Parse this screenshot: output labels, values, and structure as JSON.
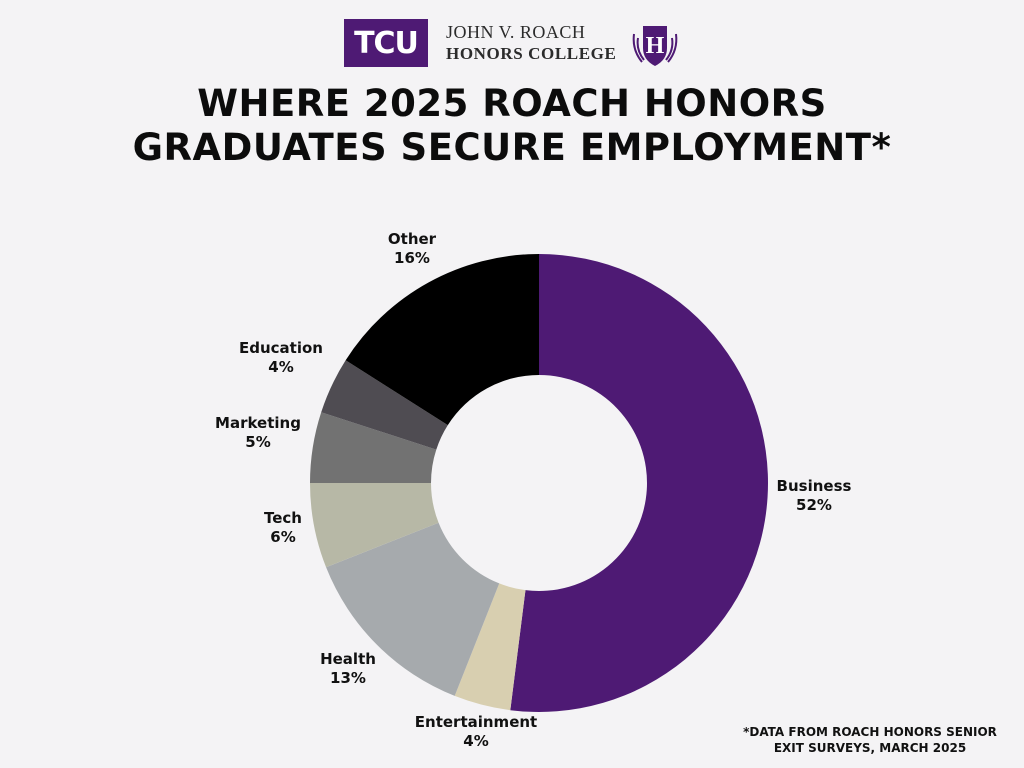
{
  "header": {
    "logo_text": "TCU",
    "college_line1": "JOHN V. ROACH",
    "college_line2": "HONORS COLLEGE",
    "crest_letter": "H"
  },
  "chart_data": {
    "type": "pie",
    "title": "WHERE 2025 ROACH HONORS GRADUATES SECURE EMPLOYMENT*",
    "footnote": "*DATA FROM ROACH HONORS SENIOR EXIT SURVEYS, MARCH 2025",
    "slices": [
      {
        "label": "Business",
        "value": 52,
        "value_label": "52%",
        "color": "#4e1a74"
      },
      {
        "label": "Entertainment",
        "value": 4,
        "value_label": "4%",
        "color": "#d8cfb0"
      },
      {
        "label": "Health",
        "value": 13,
        "value_label": "13%",
        "color": "#a6aaad"
      },
      {
        "label": "Tech",
        "value": 6,
        "value_label": "6%",
        "color": "#b7b8a6"
      },
      {
        "label": "Marketing",
        "value": 5,
        "value_label": "5%",
        "color": "#727272"
      },
      {
        "label": "Education",
        "value": 4,
        "value_label": "4%",
        "color": "#4f4c52"
      },
      {
        "label": "Other",
        "value": 16,
        "value_label": "16%",
        "color": "#000000"
      }
    ]
  }
}
